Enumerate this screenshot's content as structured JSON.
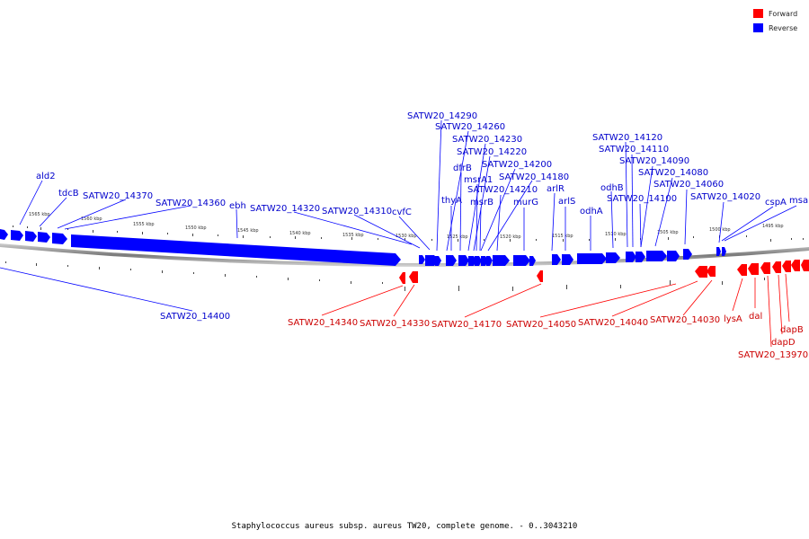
{
  "legend": [
    {
      "label": "Forward",
      "color": "#ff0000"
    },
    {
      "label": "Reverse",
      "color": "#0000ff"
    }
  ],
  "caption": "Staphylococcus aureus subsp. aureus TW20, complete genome. - 0..3043210",
  "colors": {
    "forward": "#ff0000",
    "reverse": "#0000ff",
    "backbone": "#888888"
  },
  "scale_labels": [
    "1565 kbp",
    "1560 kbp",
    "1555 kbp",
    "1550 kbp",
    "1545 kbp",
    "1540 kbp",
    "1535 kbp",
    "1530 kbp",
    "1525 kbp",
    "1520 kbp",
    "1515 kbp",
    "1510 kbp",
    "1505 kbp",
    "1500 kbp",
    "1495 kbp"
  ],
  "reverse_labels": [
    "ald2",
    "tdcB",
    "SATW20_14370",
    "SATW20_14360",
    "ebh",
    "SATW20_14320",
    "SATW20_14310",
    "cvfC",
    "SATW20_14290",
    "SATW20_14260",
    "SATW20_14230",
    "SATW20_14220",
    "dfrB",
    "SATW20_14200",
    "msrA1",
    "SATW20_14180",
    "SATW20_14210",
    "thyA",
    "msrB",
    "arlR",
    "murG",
    "arlS",
    "odhA",
    "SATW20_14120",
    "SATW20_14110",
    "SATW20_14090",
    "SATW20_14080",
    "odhB",
    "SATW20_14060",
    "SATW20_14100",
    "SATW20_14020",
    "cspA",
    "msa",
    "SATW20_14400"
  ],
  "forward_labels": [
    "SATW20_14340",
    "SATW20_14330",
    "SATW20_14170",
    "SATW20_14050",
    "SATW20_14040",
    "SATW20_14030",
    "lysA",
    "dal",
    "dapB",
    "dapD",
    "SATW20_13970"
  ]
}
